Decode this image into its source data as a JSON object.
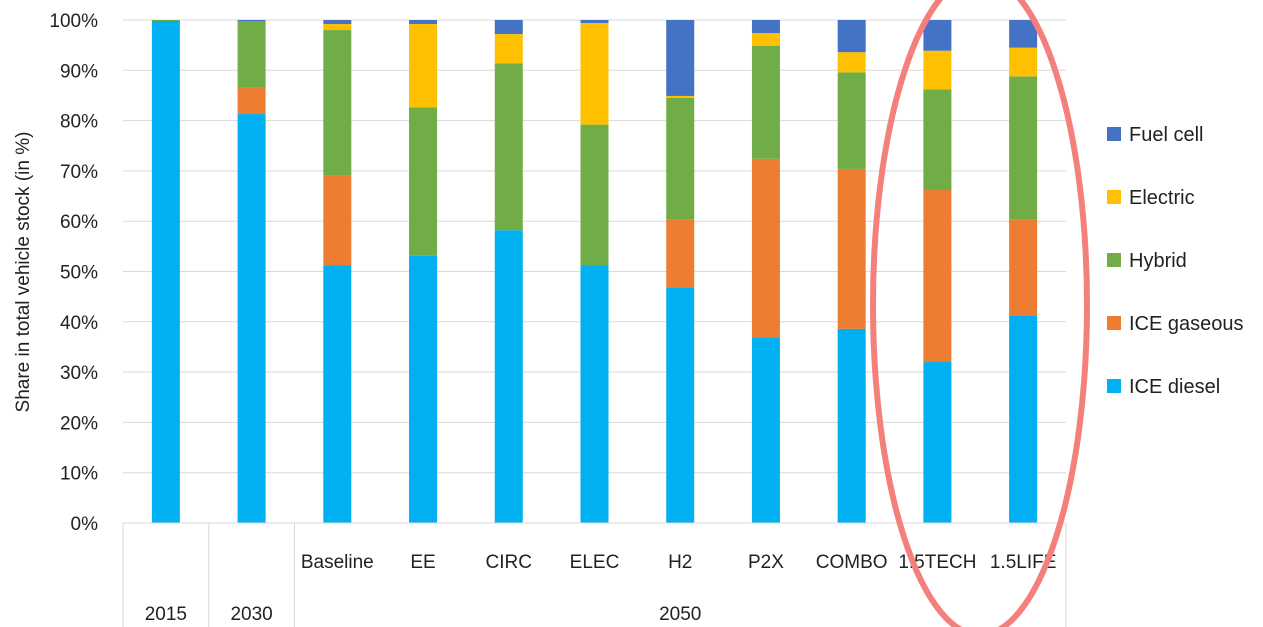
{
  "chart_data": {
    "type": "bar",
    "stacked": true,
    "normalized": true,
    "ylabel": "Share in total vehicle stock (in %)",
    "ylim": [
      0,
      100
    ],
    "yticks": [
      "0%",
      "10%",
      "20%",
      "30%",
      "40%",
      "50%",
      "60%",
      "70%",
      "80%",
      "90%",
      "100%"
    ],
    "grid": true,
    "legend_position": "right",
    "categories": [
      "",
      "",
      "Baseline",
      "EE",
      "CIRC",
      "ELEC",
      "H2",
      "P2X",
      "COMBO",
      "1.5TECH",
      "1.5LIFE"
    ],
    "groups": [
      {
        "label": "2015",
        "categories": [
          0
        ]
      },
      {
        "label": "2030",
        "categories": [
          1
        ]
      },
      {
        "label": "2050",
        "categories": [
          2,
          3,
          4,
          5,
          6,
          7,
          8,
          9,
          10
        ]
      }
    ],
    "series": [
      {
        "name": "ICE diesel",
        "color": "#00B0F0",
        "values": [
          99.8,
          81.3,
          51.2,
          53.1,
          58.2,
          51.2,
          46.8,
          36.9,
          38.6,
          32.0,
          41.3
        ]
      },
      {
        "name": "ICE gaseous",
        "color": "#ED7D31",
        "values": [
          0.0,
          5.2,
          17.9,
          0.0,
          0.0,
          0.0,
          13.5,
          35.5,
          31.8,
          34.2,
          19.0
        ]
      },
      {
        "name": "Hybrid",
        "color": "#70AD47",
        "values": [
          0.2,
          13.3,
          28.9,
          29.5,
          33.2,
          28.0,
          24.2,
          22.5,
          19.2,
          20.0,
          28.5
        ]
      },
      {
        "name": "Electric",
        "color": "#FFC000",
        "values": [
          0.0,
          0.0,
          1.2,
          16.6,
          5.8,
          20.2,
          0.4,
          2.5,
          4.0,
          7.7,
          5.7
        ]
      },
      {
        "name": "Fuel cell",
        "color": "#4472C4",
        "values": [
          0.0,
          0.2,
          0.8,
          0.8,
          2.8,
          0.6,
          15.1,
          2.6,
          6.4,
          6.1,
          5.5
        ]
      }
    ],
    "annotation": {
      "shape": "ellipse",
      "color": "#F4807C",
      "encloses": [
        "1.5TECH",
        "1.5LIFE"
      ]
    }
  }
}
